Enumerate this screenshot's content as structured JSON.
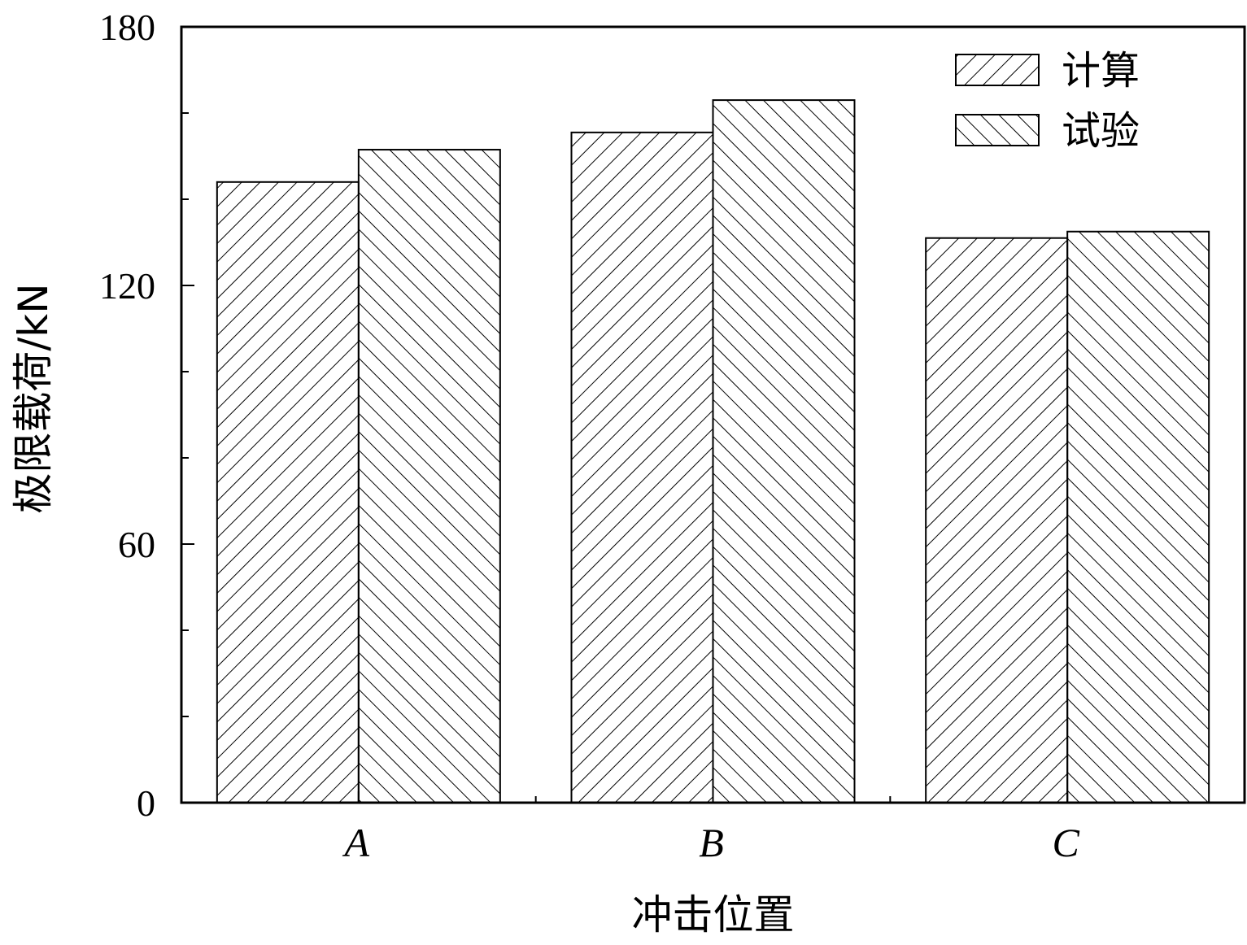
{
  "chart_data": {
    "type": "bar",
    "categories": [
      "A",
      "B",
      "C"
    ],
    "series": [
      {
        "name": "计算",
        "values": [
          144,
          155.5,
          131
        ],
        "pattern": "forward-hatch"
      },
      {
        "name": "试验",
        "values": [
          151.5,
          163,
          132.5
        ],
        "pattern": "backward-hatch"
      }
    ],
    "xlabel": "冲击位置",
    "ylabel": "极限载荷/kN",
    "ylim": [
      0,
      180
    ],
    "yticks": [
      0,
      60,
      120,
      180
    ],
    "y_minor_step": 20,
    "grid": false,
    "legend_position": "top-right",
    "colors": {
      "stroke": "#000000",
      "fill": "#ffffff"
    }
  }
}
